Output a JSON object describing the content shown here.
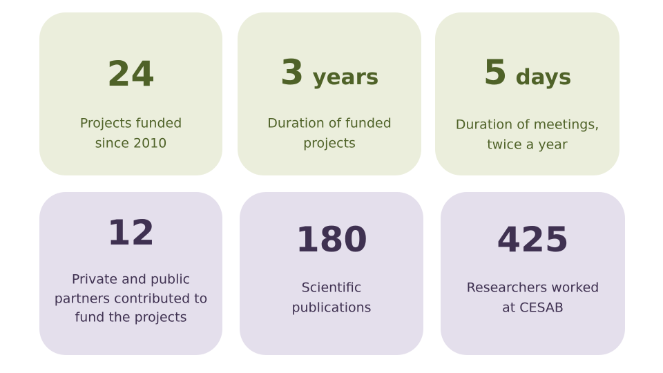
{
  "cards": [
    {
      "value": "24",
      "description": [
        "Projects funded",
        "since 2010"
      ]
    },
    {
      "value": "3",
      "unit": "years",
      "description": [
        "Duration of funded",
        "projects"
      ]
    },
    {
      "value": "5",
      "unit": "days",
      "description": [
        "Duration of meetings,",
        "twice a year"
      ]
    },
    {
      "value": "12",
      "description": [
        "Private and public",
        "partners contributed to",
        "fund the projects"
      ]
    },
    {
      "value": "180",
      "description": [
        "Scientific",
        "publications"
      ]
    },
    {
      "value": "425",
      "description": [
        "Researchers worked",
        "at CESAB"
      ]
    }
  ]
}
